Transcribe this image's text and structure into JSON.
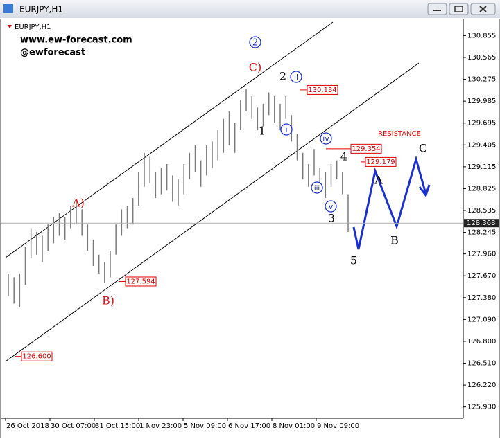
{
  "window": {
    "title": "EURJPY,H1"
  },
  "chart_data": {
    "type": "hl-bar",
    "symbol": "EURJPY,H1",
    "watermarks": [
      "www.ew-forecast.com",
      "@ewforecast"
    ],
    "color": "#7a7a7a",
    "low": [
      127.4,
      127.3,
      127.25,
      127.55,
      127.9,
      127.95,
      127.85,
      128.0,
      128.1,
      128.2,
      128.15,
      128.3,
      128.35,
      128.2,
      128.0,
      127.8,
      127.7,
      127.58,
      127.65,
      127.95,
      128.2,
      128.3,
      128.35,
      128.6,
      128.85,
      128.9,
      128.7,
      128.75,
      128.8,
      128.65,
      128.6,
      128.75,
      128.95,
      129.05,
      128.85,
      129.0,
      129.1,
      129.2,
      129.3,
      129.4,
      129.3,
      129.6,
      129.85,
      129.75,
      129.6,
      129.65,
      129.8,
      129.7,
      129.6,
      129.75,
      129.45,
      129.2,
      128.95,
      128.85,
      129.0,
      128.8,
      128.7,
      128.85,
      128.95,
      128.75,
      128.25
    ],
    "high": [
      127.7,
      127.65,
      127.7,
      128.05,
      128.3,
      128.25,
      128.2,
      128.35,
      128.45,
      128.5,
      128.45,
      128.6,
      128.65,
      128.55,
      128.35,
      128.15,
      127.95,
      127.85,
      128.0,
      128.35,
      128.55,
      128.6,
      128.7,
      129.05,
      129.3,
      129.25,
      129.05,
      129.1,
      129.15,
      129.0,
      128.95,
      129.15,
      129.3,
      129.4,
      129.2,
      129.4,
      129.45,
      129.6,
      129.75,
      129.85,
      129.7,
      130.0,
      130.15,
      130.05,
      129.9,
      129.95,
      130.1,
      130.05,
      129.95,
      130.05,
      129.8,
      129.55,
      129.3,
      129.15,
      129.35,
      129.1,
      129.05,
      129.15,
      129.2,
      129.05,
      128.75
    ],
    "x_labels": [
      "26 Oct 2018",
      "30 Oct 07:00",
      "31 Oct 15:00",
      "1 Nov 23:00",
      "5 Nov 09:00",
      "6 Nov 17:00",
      "8 Nov 01:00",
      "9 Nov 09:00"
    ],
    "ylim": [
      125.78,
      131.07
    ],
    "yticks": [
      130.855,
      130.565,
      130.275,
      129.985,
      129.695,
      129.405,
      129.115,
      128.825,
      128.535,
      128.245,
      {
        "value": 127.96,
        "label": "127.960"
      },
      {
        "value": 127.67,
        "label": "127.670"
      },
      {
        "value": 127.38,
        "label": "127.380"
      },
      {
        "value": 127.09,
        "label": "127.090"
      },
      {
        "value": 126.8,
        "label": "126.800"
      },
      {
        "value": 126.51,
        "label": "126.510"
      },
      {
        "value": 126.22,
        "label": "126.220"
      },
      {
        "value": 125.93,
        "label": "125.930"
      }
    ],
    "current_price": 128.368,
    "price_levels": [
      130.134,
      129.354,
      129.179,
      127.594,
      {
        "value": 126.6,
        "label": "126.600"
      }
    ],
    "annotations": [
      "2",
      "C)",
      "2",
      "ii",
      "1",
      "i",
      "iv",
      "iii",
      "v",
      "3",
      "4",
      "5",
      "A)",
      "B)",
      "A",
      "B",
      "C",
      "RESISTANCE"
    ]
  }
}
